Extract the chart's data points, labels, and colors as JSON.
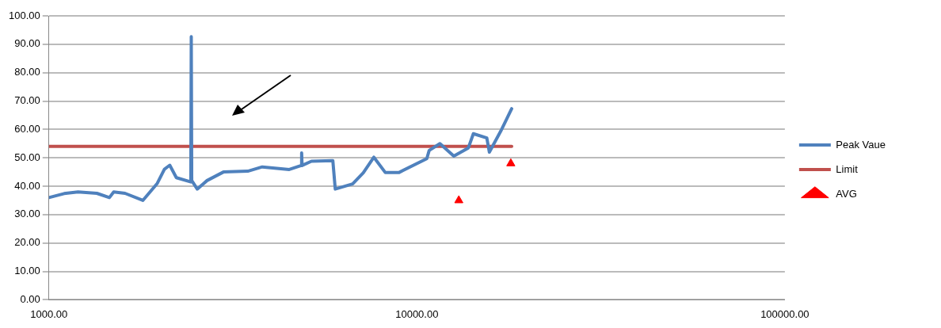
{
  "chart_data": {
    "type": "line",
    "log": "x",
    "grid": "y",
    "legend": "right",
    "xlim": [
      1000,
      100000
    ],
    "xticks": [
      {
        "value": 1000,
        "label": "1000.00"
      },
      {
        "value": 10000,
        "label": "10000.00"
      },
      {
        "value": 100000,
        "label": "100000.00"
      }
    ],
    "ylim": [
      0,
      100
    ],
    "yticks": [
      {
        "value": 0,
        "label": "0.00"
      },
      {
        "value": 10,
        "label": "10.00"
      },
      {
        "value": 20,
        "label": "20.00"
      },
      {
        "value": 30,
        "label": "30.00"
      },
      {
        "value": 40,
        "label": "40.00"
      },
      {
        "value": 50,
        "label": "50.00"
      },
      {
        "value": 60,
        "label": "60.00"
      },
      {
        "value": 70,
        "label": "70.00"
      },
      {
        "value": 80,
        "label": "80.00"
      },
      {
        "value": 90,
        "label": "90.00"
      },
      {
        "value": 100,
        "label": "100.00"
      }
    ],
    "series": [
      {
        "name": "Peak Vaue",
        "color": "#4f81bd",
        "x": [
          1000,
          1100,
          1200,
          1350,
          1460,
          1500,
          1610,
          1800,
          1970,
          2060,
          2130,
          2220,
          2430,
          2437,
          2444,
          2530,
          2690,
          2980,
          3470,
          3800,
          4500,
          4850,
          4862,
          4875,
          5170,
          5910,
          6000,
          6690,
          7150,
          7640,
          8210,
          8930,
          10640,
          10800,
          11550,
          12600,
          13800,
          14240,
          15490,
          15740,
          16900,
          18100
        ],
        "values": [
          36,
          37.4,
          38,
          37.5,
          36,
          38,
          37.5,
          35,
          41,
          46,
          47.4,
          43,
          41.5,
          92.7,
          42,
          39,
          42,
          45,
          45.3,
          46.8,
          45.9,
          47.3,
          51.7,
          47.3,
          48.8,
          49,
          39,
          40.8,
          44.7,
          50.2,
          44.8,
          44.8,
          49.7,
          52.6,
          55,
          50.6,
          53.5,
          58.5,
          57,
          52,
          59.4,
          67.3
        ]
      },
      {
        "name": "Limit",
        "color": "#c0504d",
        "x": [
          1000,
          18100
        ],
        "values": [
          54,
          54
        ]
      },
      {
        "name": "AVG",
        "type": "scatter",
        "color": "#ff0000",
        "marker": "triangle",
        "x": [
          13000,
          18000
        ],
        "values": [
          35,
          48
        ]
      }
    ]
  }
}
